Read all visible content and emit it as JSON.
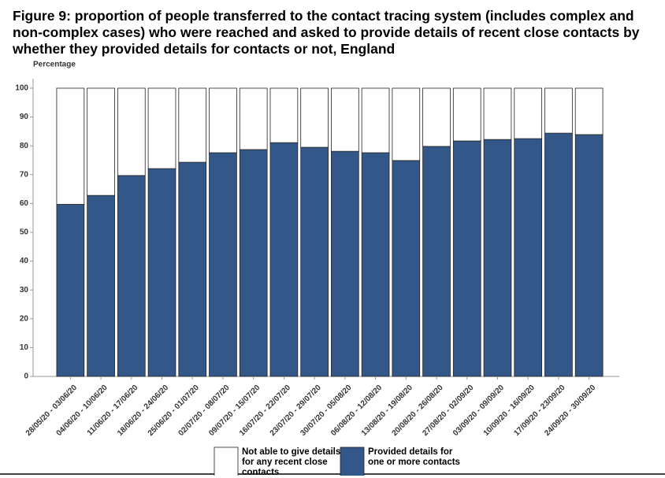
{
  "chart_data": {
    "type": "stacked_bar",
    "title": "Figure 9: proportion of people transferred to the contact tracing system (includes complex and non-complex cases) who were reached and asked to provide details of recent close contacts by whether they provided details for contacts or not, England",
    "y_label": "Percentage",
    "categories": [
      "28/05/20 - 03/06/20",
      "04/06/20 - 10/06/20",
      "11/06/20 - 17/06/20",
      "18/06/20 - 24/06/20",
      "25/06/20 - 01/07/20",
      "02/07/20 - 08/07/20",
      "09/07/20 - 15/07/20",
      "16/07/20 - 22/07/20",
      "23/07/20 - 29/07/20",
      "30/07/20 - 05/08/20",
      "06/08/20 - 12/08/20",
      "13/08/20 - 19/08/20",
      "20/08/20 - 26/08/20",
      "27/08/20 - 02/09/20",
      "03/09/20 - 09/09/20",
      "10/09/20 - 16/09/20",
      "17/09/20 - 23/09/20",
      "24/09/20 - 30/09/20"
    ],
    "series": [
      {
        "name": "Provided details for one or more contacts",
        "color": "#34578a",
        "values": [
          59.7,
          62.8,
          69.7,
          72.1,
          74.3,
          77.6,
          78.7,
          81.1,
          79.5,
          78.1,
          77.6,
          74.9,
          79.8,
          81.7,
          82.2,
          82.5,
          84.4,
          83.9
        ]
      },
      {
        "name": "Not able to give details for any recent close contacts",
        "color": "#ffffff",
        "values": [
          40.3,
          37.2,
          30.3,
          27.9,
          25.7,
          22.4,
          21.3,
          18.9,
          20.5,
          21.9,
          22.4,
          25.1,
          20.2,
          18.3,
          17.8,
          17.5,
          15.6,
          16.1
        ]
      }
    ],
    "ylim": [
      0,
      100
    ],
    "yticks": [
      0,
      10,
      20,
      30,
      40,
      50,
      60,
      70,
      80,
      90,
      100
    ],
    "grid": false
  }
}
